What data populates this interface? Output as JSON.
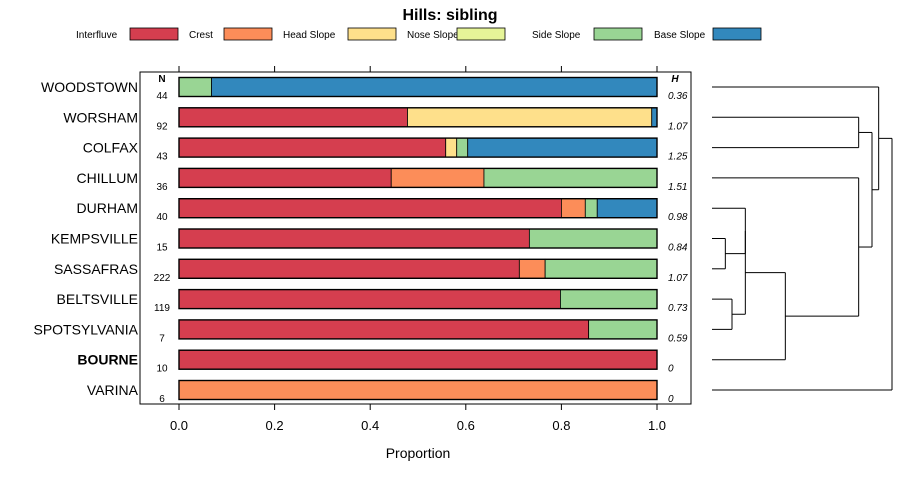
{
  "chart_data": {
    "type": "bar",
    "stacked": true,
    "orientation": "horizontal",
    "title": "Hills: sibling",
    "xlabel": "Proportion",
    "ylabel": "",
    "xlim": [
      0.0,
      1.0
    ],
    "x_ticks": [
      "0.0",
      "0.2",
      "0.4",
      "0.6",
      "0.8",
      "1.0"
    ],
    "n_header": "N",
    "h_header": "H",
    "legend": [
      {
        "name": "Interfluve",
        "color": "#d53e4f"
      },
      {
        "name": "Crest",
        "color": "#fc8d59"
      },
      {
        "name": "Head Slope",
        "color": "#fee08b"
      },
      {
        "name": "Nose Slope",
        "color": "#e6f598"
      },
      {
        "name": "Side Slope",
        "color": "#99d594"
      },
      {
        "name": "Base Slope",
        "color": "#3288bd"
      }
    ],
    "highlight": "BOURNE",
    "categories": [
      "WOODSTOWN",
      "WORSHAM",
      "COLFAX",
      "CHILLUM",
      "DURHAM",
      "KEMPSVILLE",
      "SASSAFRAS",
      "BELTSVILLE",
      "SPOTSYLVANIA",
      "BOURNE",
      "VARINA"
    ],
    "n": [
      "44",
      "92",
      "43",
      "36",
      "40",
      "15",
      "222",
      "119",
      "7",
      "10",
      "6"
    ],
    "h": [
      "0.36",
      "1.07",
      "1.25",
      "1.51",
      "0.98",
      "0.84",
      "1.07",
      "0.73",
      "0.59",
      "0",
      "0"
    ],
    "series": [
      {
        "name": "Interfluve",
        "values": [
          0,
          0.478,
          0.558,
          0.444,
          0.8,
          0.733,
          0.712,
          0.798,
          0.857,
          1.0,
          0
        ]
      },
      {
        "name": "Crest",
        "values": [
          0,
          0,
          0,
          0.194,
          0.05,
          0,
          0.054,
          0,
          0,
          0,
          1.0
        ]
      },
      {
        "name": "Head Slope",
        "values": [
          0,
          0.511,
          0.023,
          0,
          0,
          0,
          0,
          0,
          0,
          0,
          0
        ]
      },
      {
        "name": "Nose Slope",
        "values": [
          0,
          0,
          0,
          0,
          0,
          0,
          0,
          0,
          0,
          0,
          0
        ]
      },
      {
        "name": "Side Slope",
        "values": [
          0.068,
          0,
          0.023,
          0.362,
          0.025,
          0.267,
          0.234,
          0.202,
          0.143,
          0,
          0
        ]
      },
      {
        "name": "Base Slope",
        "values": [
          0.932,
          0.011,
          0.396,
          0,
          0.125,
          0,
          0,
          0,
          0,
          0,
          0
        ]
      }
    ],
    "dendrogram": {
      "merges": [
        [
          5,
          6,
          0.02
        ],
        [
          7,
          8,
          0.03
        ],
        [
          -1,
          4,
          0.05
        ],
        [
          -3,
          -2,
          0.05
        ],
        [
          -4,
          9,
          0.11
        ],
        [
          3,
          -5,
          0.22
        ],
        [
          1,
          2,
          0.22
        ],
        [
          -7,
          -6,
          0.24
        ],
        [
          0,
          -8,
          0.25
        ],
        [
          -9,
          10,
          0.27
        ]
      ],
      "max_height": 0.27
    }
  }
}
